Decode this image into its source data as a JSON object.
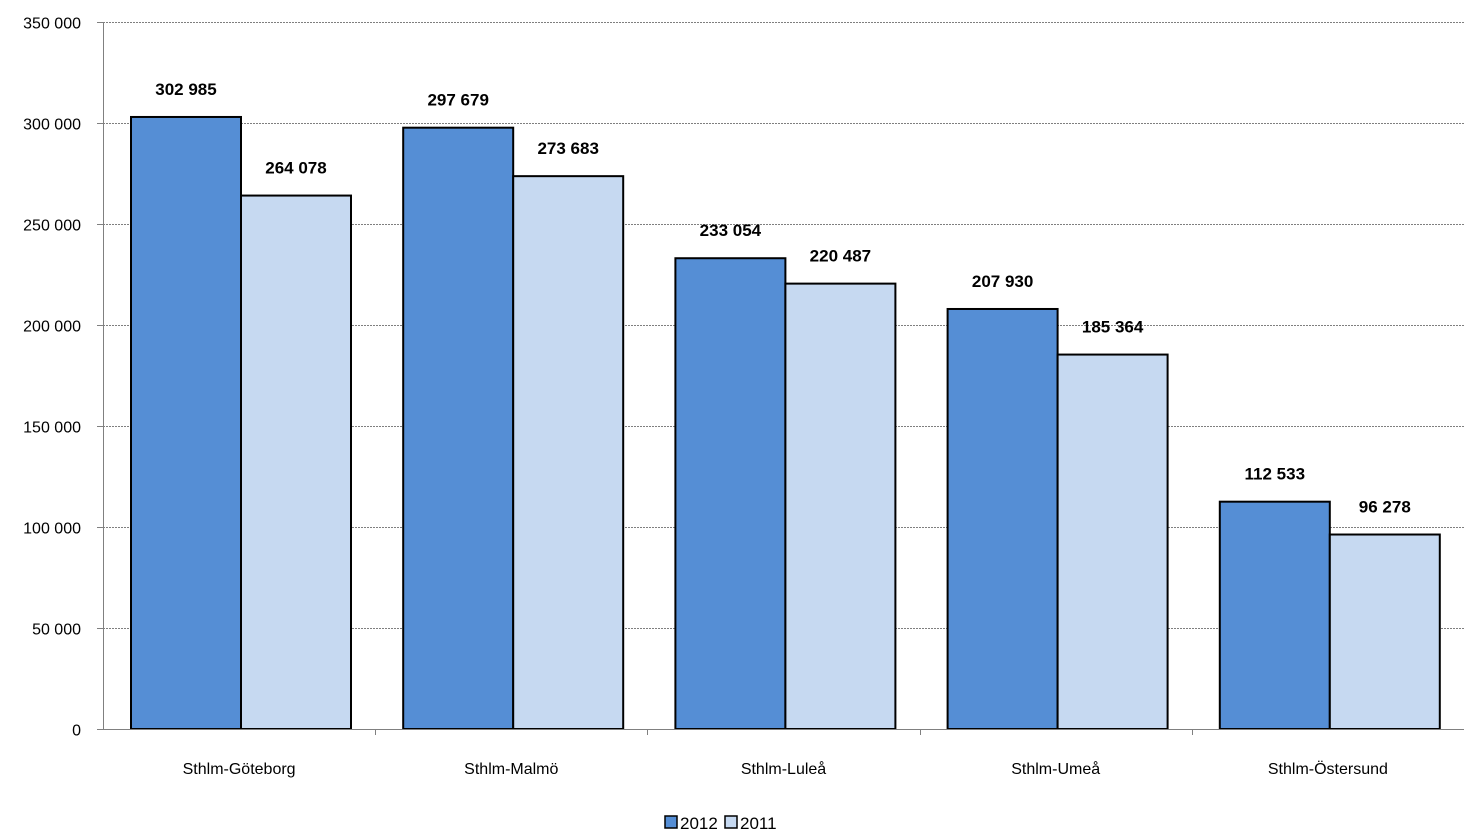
{
  "chart_data": {
    "type": "bar",
    "categories": [
      "Sthlm-Göteborg",
      "Sthlm-Malmö",
      "Sthlm-Luleå",
      "Sthlm-Umeå",
      "Sthlm-Östersund"
    ],
    "series": [
      {
        "name": "2012",
        "color": "#558ED5",
        "values": [
          302985,
          297679,
          233054,
          207930,
          112533
        ],
        "labels": [
          "302 985",
          "297 679",
          "233 054",
          "207 930",
          "112 533"
        ]
      },
      {
        "name": "2011",
        "color": "#C6D9F1",
        "values": [
          264078,
          273683,
          220487,
          185364,
          96278
        ],
        "labels": [
          "264 078",
          "273 683",
          "220 487",
          "185 364",
          "96 278"
        ]
      }
    ],
    "ylim": [
      0,
      350000
    ],
    "yticks": [
      0,
      50000,
      100000,
      150000,
      200000,
      250000,
      300000,
      350000
    ],
    "ytick_labels": [
      "0",
      "50 000",
      "100 000",
      "150 000",
      "200 000",
      "250 000",
      "300 000",
      "350 000"
    ],
    "grid": true,
    "legend_position": "bottom",
    "title": "",
    "xlabel": "",
    "ylabel": ""
  }
}
